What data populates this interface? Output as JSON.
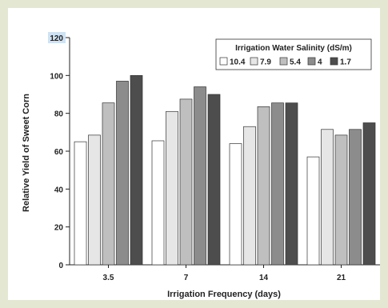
{
  "chart_data": {
    "type": "bar",
    "categories": [
      "3.5",
      "7",
      "14",
      "21"
    ],
    "series": [
      {
        "name": "10.4",
        "color": "#ffffff",
        "values": [
          65,
          65.5,
          64,
          57
        ]
      },
      {
        "name": "7.9",
        "color": "#e6e6e6",
        "values": [
          68.5,
          81,
          73,
          71.5
        ]
      },
      {
        "name": "5.4",
        "color": "#bfbfbf",
        "values": [
          85.5,
          87.5,
          83.5,
          68.5
        ]
      },
      {
        "name": "4",
        "color": "#8c8c8c",
        "values": [
          97,
          94,
          85.5,
          71.5
        ]
      },
      {
        "name": "1.7",
        "color": "#4d4d4d",
        "values": [
          100,
          90,
          85.5,
          75
        ]
      }
    ],
    "xlabel": "Irrigation Frequency (days)",
    "ylabel": "Relative Yield of Sweet Corn",
    "ylim": [
      0,
      120
    ],
    "yticks": [
      "0",
      "20",
      "40",
      "60",
      "80",
      "100",
      "120"
    ],
    "legend": {
      "title": "Irrigation Water Salinity (dS/m)",
      "placement": "top-right"
    },
    "grid": false
  }
}
